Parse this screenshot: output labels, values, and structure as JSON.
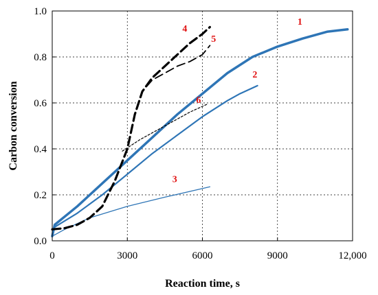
{
  "chart_data": {
    "type": "line",
    "title": "",
    "xlabel": "Reaction time, s",
    "ylabel": "Carbon conversion",
    "xlim": [
      0,
      12000
    ],
    "ylim": [
      0,
      1.0
    ],
    "x_ticks": [
      0,
      3000,
      6000,
      9000,
      12000
    ],
    "x_tick_labels": [
      "0",
      "3000",
      "6000",
      "9000",
      "12,000"
    ],
    "y_ticks": [
      0,
      0.2,
      0.4,
      0.6,
      0.8,
      1.0
    ],
    "y_tick_labels": [
      "0.0",
      "0.2",
      "0.4",
      "0.6",
      "0.8",
      "1.0"
    ],
    "grid": "vertical dashed at x ticks; horizontal dashed at 0.2–0.8",
    "label_color": "#e01010",
    "series": [
      {
        "label": "1",
        "color": "#2e75b6",
        "style": "solid",
        "width": 3.5,
        "points": [
          [
            0,
            0.02
          ],
          [
            100,
            0.07
          ],
          [
            1000,
            0.15
          ],
          [
            2000,
            0.25
          ],
          [
            3000,
            0.35
          ],
          [
            4000,
            0.45
          ],
          [
            5000,
            0.55
          ],
          [
            6000,
            0.64
          ],
          [
            7000,
            0.73
          ],
          [
            8000,
            0.8
          ],
          [
            9000,
            0.845
          ],
          [
            10000,
            0.88
          ],
          [
            11000,
            0.91
          ],
          [
            11800,
            0.92
          ]
        ],
        "label_pos": [
          9800,
          0.94
        ]
      },
      {
        "label": "2",
        "color": "#2e75b6",
        "style": "solid",
        "width": 2.2,
        "points": [
          [
            0,
            0.02
          ],
          [
            100,
            0.06
          ],
          [
            1000,
            0.12
          ],
          [
            2000,
            0.2
          ],
          [
            3000,
            0.29
          ],
          [
            4000,
            0.38
          ],
          [
            5000,
            0.46
          ],
          [
            6000,
            0.54
          ],
          [
            7000,
            0.61
          ],
          [
            7500,
            0.64
          ],
          [
            8200,
            0.675
          ]
        ],
        "label_pos": [
          8000,
          0.71
        ]
      },
      {
        "label": "3",
        "color": "#2e75b6",
        "style": "solid",
        "width": 1.3,
        "points": [
          [
            0,
            0.02
          ],
          [
            500,
            0.05
          ],
          [
            1500,
            0.1
          ],
          [
            3000,
            0.15
          ],
          [
            4500,
            0.19
          ],
          [
            6300,
            0.235
          ]
        ],
        "label_pos": [
          4800,
          0.255
        ]
      },
      {
        "label": "4",
        "color": "#000000",
        "style": "dashed",
        "width": 3.2,
        "points": [
          [
            0,
            0.05
          ],
          [
            500,
            0.055
          ],
          [
            1000,
            0.07
          ],
          [
            1500,
            0.1
          ],
          [
            2000,
            0.15
          ],
          [
            2500,
            0.26
          ],
          [
            3000,
            0.4
          ],
          [
            3300,
            0.55
          ],
          [
            3600,
            0.65
          ],
          [
            4000,
            0.71
          ],
          [
            4500,
            0.76
          ],
          [
            5000,
            0.81
          ],
          [
            5500,
            0.86
          ],
          [
            6000,
            0.9
          ],
          [
            6300,
            0.93
          ]
        ],
        "label_pos": [
          5200,
          0.91
        ]
      },
      {
        "label": "5",
        "color": "#000000",
        "style": "dashed",
        "width": 1.8,
        "points": [
          [
            0,
            0.05
          ],
          [
            500,
            0.055
          ],
          [
            1000,
            0.07
          ],
          [
            1500,
            0.1
          ],
          [
            2000,
            0.15
          ],
          [
            2500,
            0.26
          ],
          [
            3000,
            0.4
          ],
          [
            3300,
            0.55
          ],
          [
            3600,
            0.65
          ],
          [
            4000,
            0.7
          ],
          [
            4500,
            0.73
          ],
          [
            5000,
            0.76
          ],
          [
            5500,
            0.78
          ],
          [
            6000,
            0.81
          ],
          [
            6300,
            0.85
          ]
        ],
        "label_pos": [
          6350,
          0.865
        ]
      },
      {
        "label": "6",
        "color": "#000000",
        "style": "dotted",
        "width": 1.2,
        "points": [
          [
            2800,
            0.39
          ],
          [
            3500,
            0.44
          ],
          [
            4500,
            0.5
          ],
          [
            5500,
            0.56
          ],
          [
            6200,
            0.595
          ]
        ],
        "label_pos": [
          5750,
          0.6
        ]
      }
    ]
  }
}
